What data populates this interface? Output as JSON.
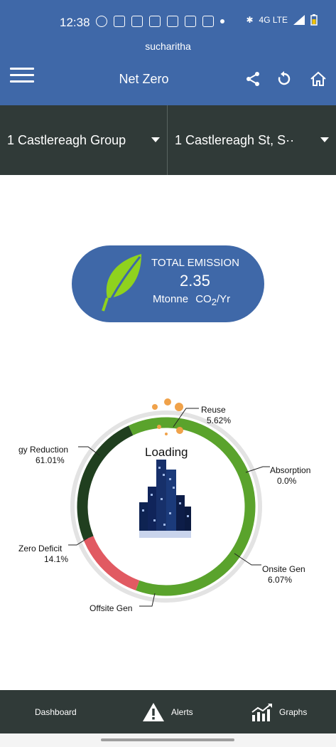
{
  "status_bar": {
    "time": "12:38",
    "network": "4G LTE"
  },
  "app_bar": {
    "user": "sucharitha",
    "title": "Net Zero"
  },
  "selectors": {
    "group": "1 Castlereagh Group",
    "site": "1 Castlereagh St, S··"
  },
  "emission": {
    "label": "TOTAL EMISSION",
    "value": "2.35",
    "unit_prefix": "Mtonne",
    "unit_co": "CO",
    "unit_sub": "2",
    "unit_suffix": "/Yr"
  },
  "chart_loading_text": "Loading",
  "chart_data": {
    "type": "pie",
    "segments": [
      {
        "name": "Reuse",
        "value": "5.62%"
      },
      {
        "name": "Absorption",
        "value": "0.0%"
      },
      {
        "name": "Onsite Gen",
        "value": "6.07%"
      },
      {
        "name": "Offsite Gen",
        "value": ""
      },
      {
        "name": "Zero Deficit",
        "value": "14.1%"
      },
      {
        "name": "gy Reduction",
        "value": "61.01%"
      }
    ],
    "colors": {
      "green": "#5aa32c",
      "red": "#e15a62",
      "dark_green": "#203f1f",
      "ring": "#e3e3e3"
    }
  },
  "bottom_nav": {
    "dashboard": "Dashboard",
    "alerts": "Alerts",
    "graphs": "Graphs"
  }
}
